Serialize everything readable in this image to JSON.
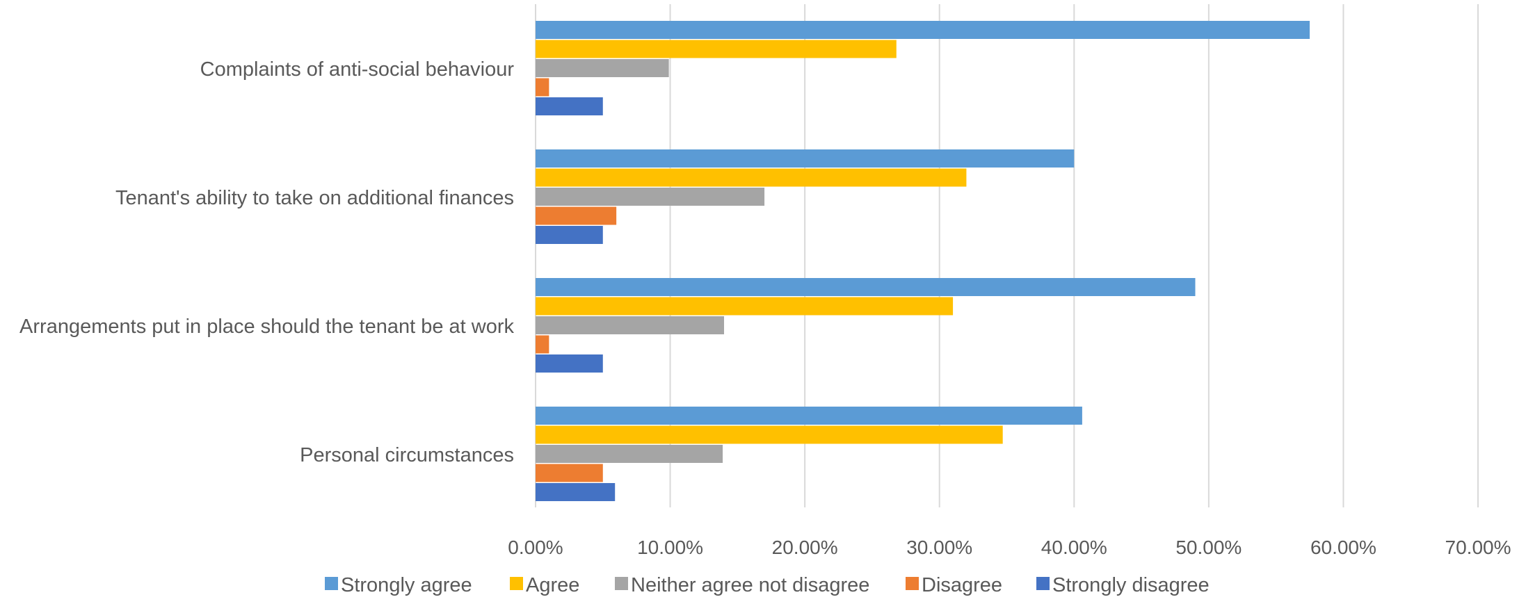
{
  "chart_data": {
    "type": "bar",
    "orientation": "horizontal",
    "title": "",
    "xlabel": "",
    "ylabel": "",
    "categories": [
      "Complaints of anti-social behaviour",
      "Tenant's ability to take on additional finances",
      "Arrangements put in place should the tenant be at work",
      "Personal circumstances"
    ],
    "series": [
      {
        "name": "Strongly agree",
        "color": "#5b9bd5",
        "values": [
          57.5,
          40.0,
          49.0,
          40.6
        ]
      },
      {
        "name": "Agree",
        "color": "#ffc000",
        "values": [
          26.8,
          32.0,
          31.0,
          34.7
        ]
      },
      {
        "name": "Neither agree not disagree",
        "color": "#a5a5a5",
        "values": [
          9.9,
          17.0,
          14.0,
          13.9
        ]
      },
      {
        "name": "Disagree",
        "color": "#ed7d31",
        "values": [
          1.0,
          6.0,
          1.0,
          5.0
        ]
      },
      {
        "name": "Strongly disagree",
        "color": "#4472c4",
        "values": [
          5.0,
          5.0,
          5.0,
          5.9
        ]
      }
    ],
    "xlim": [
      0,
      70
    ],
    "xticks": [
      "0.00%",
      "10.00%",
      "20.00%",
      "30.00%",
      "40.00%",
      "50.00%",
      "60.00%",
      "70.00%"
    ],
    "grid": true,
    "legend_position": "bottom"
  }
}
